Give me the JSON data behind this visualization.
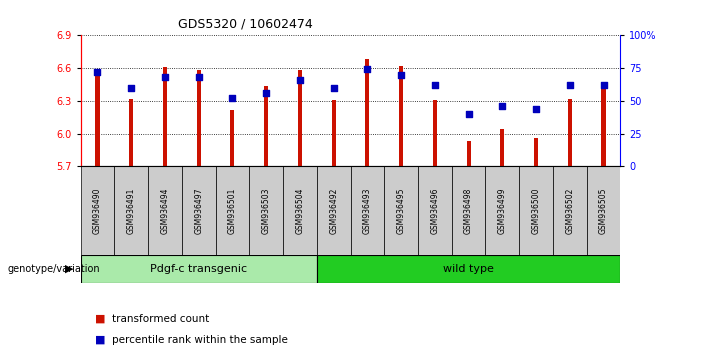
{
  "title": "GDS5320 / 10602474",
  "samples": [
    "GSM936490",
    "GSM936491",
    "GSM936494",
    "GSM936497",
    "GSM936501",
    "GSM936503",
    "GSM936504",
    "GSM936492",
    "GSM936493",
    "GSM936495",
    "GSM936496",
    "GSM936498",
    "GSM936499",
    "GSM936500",
    "GSM936502",
    "GSM936505"
  ],
  "transformed_count": [
    6.57,
    6.32,
    6.61,
    6.58,
    6.22,
    6.44,
    6.58,
    6.31,
    6.68,
    6.62,
    6.31,
    5.93,
    6.04,
    5.96,
    6.32,
    6.43
  ],
  "percentile_rank": [
    72,
    60,
    68,
    68,
    52,
    56,
    66,
    60,
    74,
    70,
    62,
    40,
    46,
    44,
    62,
    62
  ],
  "groups": [
    {
      "name": "Pdgf-c transgenic",
      "color": "#AAEAAA",
      "start": 0,
      "end": 7
    },
    {
      "name": "wild type",
      "color": "#22CC22",
      "start": 7,
      "end": 16
    }
  ],
  "ylim_left": [
    5.7,
    6.9
  ],
  "ylim_right": [
    0,
    100
  ],
  "yticks_left": [
    5.7,
    6.0,
    6.3,
    6.6,
    6.9
  ],
  "yticks_right": [
    0,
    25,
    50,
    75,
    100
  ],
  "bar_color": "#CC1100",
  "dot_color": "#0000BB",
  "legend_transformed": "transformed count",
  "legend_percentile": "percentile rank within the sample",
  "label_genotype": "genotype/variation",
  "sample_bg": "#CCCCCC",
  "bar_width": 0.12,
  "yright_ticks_labels": [
    "0",
    "25",
    "50",
    "75",
    "100%"
  ]
}
